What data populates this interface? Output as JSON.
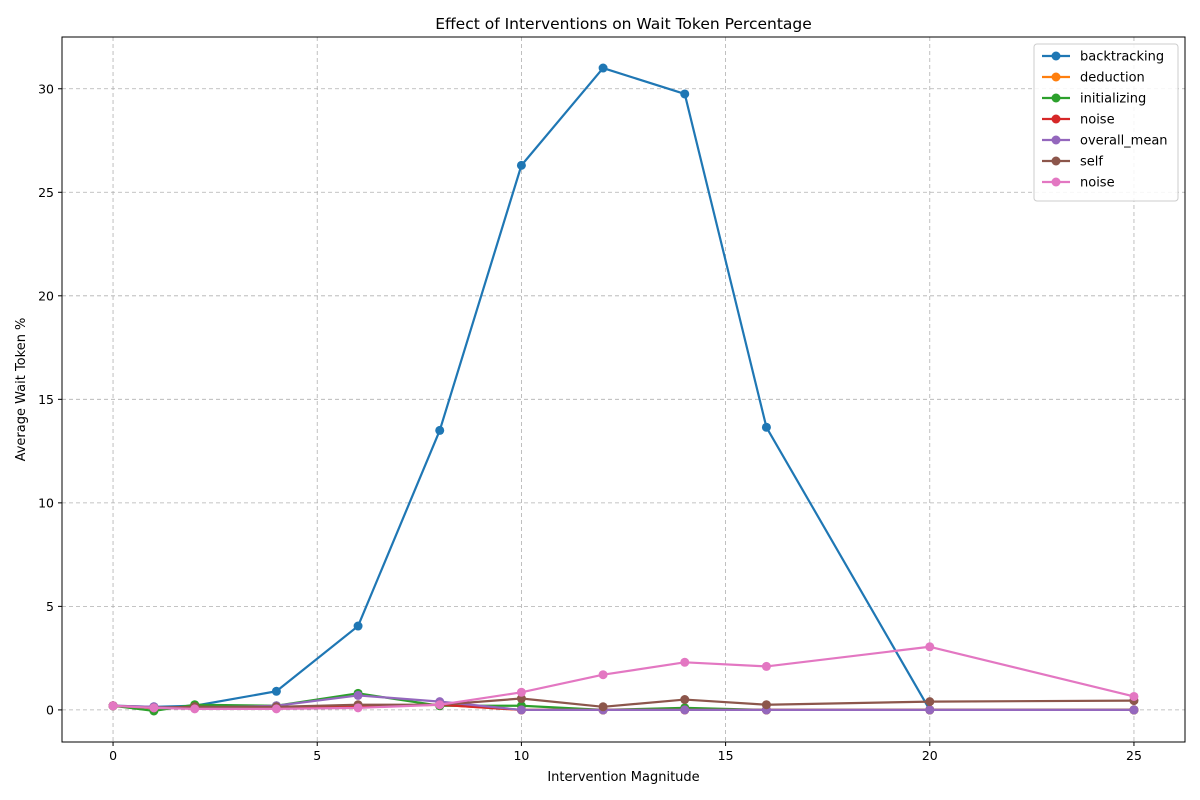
{
  "chart_data": {
    "type": "line",
    "title": "Effect of Interventions on Wait Token Percentage",
    "xlabel": "Intervention Magnitude",
    "ylabel": "Average Wait Token %",
    "xlim": [
      -1.25,
      26.25
    ],
    "ylim": [
      -1.55,
      32.5
    ],
    "xticks": [
      0,
      5,
      10,
      15,
      20,
      25
    ],
    "yticks": [
      0,
      5,
      10,
      15,
      20,
      25,
      30
    ],
    "grid": true,
    "legend_position": "top-right",
    "x": [
      0,
      1,
      2,
      4,
      6,
      8,
      10,
      12,
      14,
      16,
      20,
      25
    ],
    "series": [
      {
        "name": "backtracking",
        "color": "#1f77b4",
        "values": [
          0.2,
          0.15,
          0.2,
          0.9,
          4.05,
          13.5,
          26.3,
          31.0,
          29.75,
          13.65,
          0.0,
          0.0
        ]
      },
      {
        "name": "deduction",
        "color": "#ff7f0e",
        "values": [
          0.2,
          0.08,
          0.1,
          0.1,
          0.15,
          0.25,
          0.0,
          0.0,
          0.0,
          0.0,
          0.0,
          0.0
        ]
      },
      {
        "name": "initializing",
        "color": "#2ca02c",
        "values": [
          0.2,
          -0.05,
          0.25,
          0.2,
          0.8,
          0.2,
          0.2,
          0.0,
          0.1,
          0.0,
          0.0,
          0.0
        ]
      },
      {
        "name": "noise",
        "color": "#d62728",
        "values": [
          0.2,
          0.1,
          0.15,
          0.1,
          0.2,
          0.25,
          0.0,
          0.0,
          0.0,
          0.0,
          0.0,
          0.0
        ]
      },
      {
        "name": "overall_mean",
        "color": "#9467bd",
        "values": [
          0.2,
          0.15,
          0.1,
          0.2,
          0.7,
          0.4,
          0.0,
          0.0,
          0.0,
          0.0,
          0.0,
          0.0
        ]
      },
      {
        "name": "self",
        "color": "#8c564b",
        "values": [
          0.2,
          0.1,
          0.15,
          0.15,
          0.25,
          0.25,
          0.55,
          0.15,
          0.5,
          0.25,
          0.4,
          0.45
        ]
      },
      {
        "name": "noise",
        "color": "#e377c2",
        "values": [
          0.2,
          0.1,
          0.05,
          0.05,
          0.1,
          0.25,
          0.85,
          1.7,
          2.3,
          2.1,
          3.05,
          0.65
        ]
      }
    ]
  }
}
